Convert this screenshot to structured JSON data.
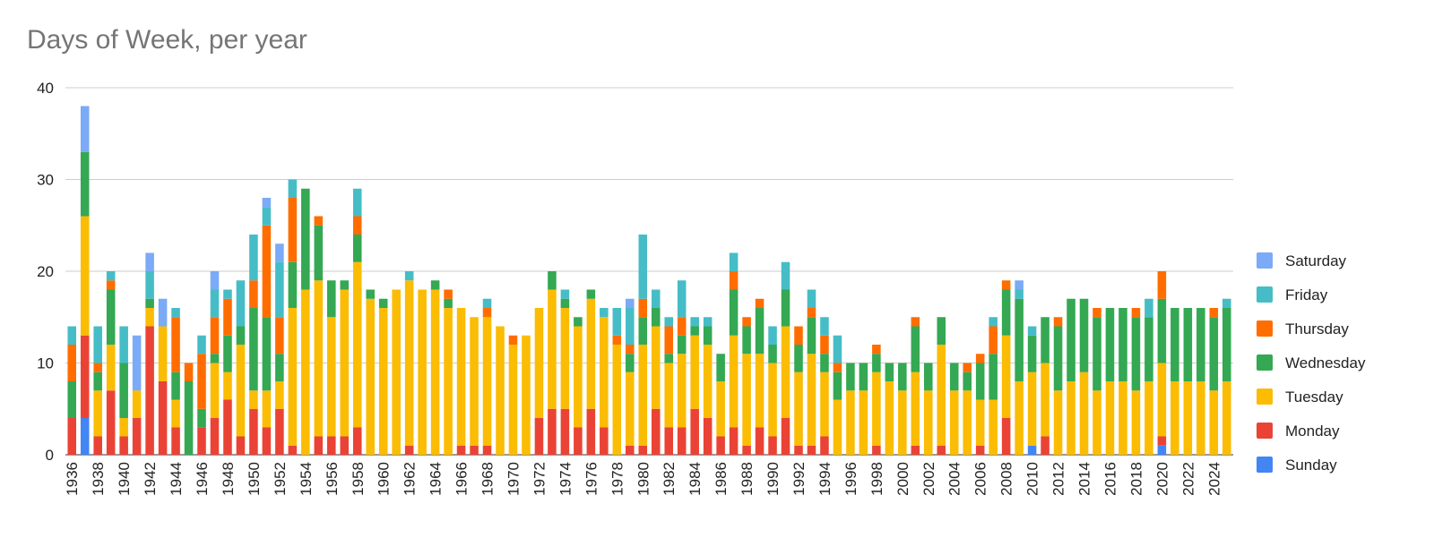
{
  "chart_data": {
    "type": "bar",
    "stacked": true,
    "title": "Days of Week, per year",
    "xlabel": "",
    "ylabel": "",
    "ylim": [
      0,
      40
    ],
    "yticks": [
      0,
      10,
      20,
      30,
      40
    ],
    "grid": true,
    "legend_position": "right",
    "categories": [
      1936,
      1937,
      1938,
      1939,
      1940,
      1941,
      1942,
      1943,
      1944,
      1945,
      1946,
      1947,
      1948,
      1949,
      1950,
      1951,
      1952,
      1953,
      1954,
      1955,
      1956,
      1957,
      1958,
      1959,
      1960,
      1961,
      1962,
      1963,
      1964,
      1965,
      1966,
      1967,
      1968,
      1969,
      1970,
      1971,
      1972,
      1973,
      1974,
      1975,
      1976,
      1977,
      1978,
      1979,
      1980,
      1981,
      1982,
      1983,
      1984,
      1985,
      1986,
      1987,
      1988,
      1989,
      1990,
      1991,
      1992,
      1993,
      1994,
      1995,
      1996,
      1997,
      1998,
      1999,
      2000,
      2001,
      2002,
      2003,
      2004,
      2005,
      2006,
      2007,
      2008,
      2009,
      2010,
      2011,
      2012,
      2013,
      2014,
      2015,
      2016,
      2017,
      2018,
      2019,
      2020,
      2021,
      2022,
      2023,
      2024,
      2025
    ],
    "x_tick_labels": [
      "1936",
      "1938",
      "1940",
      "1942",
      "1944",
      "1946",
      "1948",
      "1950",
      "1952",
      "1954",
      "1956",
      "1958",
      "1960",
      "1962",
      "1964",
      "1966",
      "1968",
      "1970",
      "1972",
      "1974",
      "1976",
      "1978",
      "1980",
      "1982",
      "1984",
      "1986",
      "1988",
      "1990",
      "1992",
      "1994",
      "1996",
      "1998",
      "2000",
      "2002",
      "2004",
      "2006",
      "2008",
      "2010",
      "2012",
      "2014",
      "2016",
      "2018",
      "2020",
      "2022",
      "2024"
    ],
    "series": [
      {
        "name": "Sunday",
        "color": "#4285F4",
        "values": [
          0,
          4,
          0,
          0,
          0,
          0,
          0,
          0,
          0,
          0,
          0,
          0,
          0,
          0,
          0,
          0,
          0,
          0,
          0,
          0,
          0,
          0,
          0,
          0,
          0,
          0,
          0,
          0,
          0,
          0,
          0,
          0,
          0,
          0,
          0,
          0,
          0,
          0,
          0,
          0,
          0,
          0,
          0,
          0,
          0,
          0,
          0,
          0,
          0,
          0,
          0,
          0,
          0,
          0,
          0,
          0,
          0,
          0,
          0,
          0,
          0,
          0,
          0,
          0,
          0,
          0,
          0,
          0,
          0,
          0,
          0,
          0,
          0,
          0,
          1,
          0,
          0,
          0,
          0,
          0,
          0,
          0,
          0,
          0,
          1,
          0,
          0,
          0,
          0,
          0
        ]
      },
      {
        "name": "Monday",
        "color": "#EA4335",
        "values": [
          4,
          9,
          2,
          7,
          2,
          4,
          14,
          8,
          3,
          0,
          3,
          4,
          6,
          2,
          5,
          3,
          5,
          1,
          0,
          2,
          2,
          2,
          3,
          0,
          0,
          0,
          1,
          0,
          0,
          0,
          1,
          1,
          1,
          0,
          0,
          0,
          4,
          5,
          5,
          3,
          5,
          3,
          0,
          1,
          1,
          5,
          3,
          3,
          5,
          4,
          2,
          3,
          1,
          3,
          2,
          4,
          1,
          1,
          2,
          0,
          0,
          0,
          1,
          0,
          0,
          1,
          0,
          1,
          0,
          0,
          1,
          0,
          4,
          0,
          0,
          2,
          0,
          0,
          0,
          0,
          0,
          0,
          0,
          0,
          1,
          0,
          0,
          0,
          0,
          0
        ]
      },
      {
        "name": "Tuesday",
        "color": "#FBBC04",
        "values": [
          0,
          13,
          5,
          5,
          2,
          3,
          2,
          6,
          3,
          0,
          0,
          6,
          3,
          10,
          2,
          4,
          3,
          15,
          18,
          17,
          13,
          16,
          18,
          17,
          16,
          18,
          18,
          18,
          18,
          16,
          15,
          14,
          14,
          14,
          12,
          13,
          12,
          13,
          11,
          11,
          12,
          12,
          12,
          8,
          11,
          9,
          7,
          8,
          8,
          8,
          6,
          10,
          10,
          8,
          8,
          10,
          8,
          10,
          7,
          6,
          7,
          7,
          8,
          8,
          7,
          8,
          7,
          11,
          7,
          7,
          5,
          6,
          9,
          8,
          8,
          8,
          7,
          8,
          9,
          7,
          8,
          8,
          7,
          8,
          8,
          8,
          8,
          8,
          7,
          8
        ]
      },
      {
        "name": "Wednesday",
        "color": "#34A853",
        "values": [
          4,
          7,
          2,
          6,
          6,
          0,
          1,
          0,
          3,
          8,
          2,
          1,
          4,
          2,
          9,
          8,
          3,
          5,
          11,
          6,
          4,
          1,
          3,
          1,
          1,
          0,
          0,
          0,
          1,
          1,
          0,
          0,
          0,
          0,
          0,
          0,
          0,
          2,
          1,
          1,
          1,
          0,
          0,
          2,
          3,
          2,
          1,
          2,
          1,
          2,
          3,
          5,
          3,
          5,
          2,
          4,
          3,
          4,
          2,
          3,
          3,
          3,
          2,
          2,
          3,
          5,
          3,
          3,
          3,
          2,
          4,
          5,
          5,
          9,
          4,
          5,
          7,
          9,
          8,
          8,
          8,
          8,
          8,
          7,
          7,
          8,
          8,
          8,
          8,
          8
        ]
      },
      {
        "name": "Thursday",
        "color": "#FF6D01",
        "values": [
          4,
          0,
          1,
          1,
          0,
          0,
          0,
          0,
          6,
          2,
          6,
          4,
          4,
          0,
          3,
          10,
          4,
          7,
          0,
          1,
          0,
          0,
          2,
          0,
          0,
          0,
          0,
          0,
          0,
          1,
          0,
          0,
          1,
          0,
          1,
          0,
          0,
          0,
          0,
          0,
          0,
          0,
          1,
          1,
          2,
          0,
          3,
          2,
          0,
          0,
          0,
          2,
          1,
          1,
          0,
          0,
          2,
          1,
          2,
          1,
          0,
          0,
          1,
          0,
          0,
          1,
          0,
          0,
          0,
          1,
          1,
          3,
          1,
          0,
          0,
          0,
          1,
          0,
          0,
          1,
          0,
          0,
          1,
          0,
          3,
          0,
          0,
          0,
          1,
          0
        ]
      },
      {
        "name": "Friday",
        "color": "#46BDC6",
        "values": [
          2,
          0,
          4,
          1,
          4,
          0,
          3,
          0,
          1,
          0,
          2,
          3,
          1,
          5,
          5,
          2,
          6,
          2,
          0,
          0,
          0,
          0,
          3,
          0,
          0,
          0,
          1,
          0,
          0,
          0,
          0,
          0,
          1,
          0,
          0,
          0,
          0,
          0,
          1,
          0,
          0,
          1,
          3,
          4,
          7,
          2,
          1,
          4,
          1,
          1,
          0,
          2,
          0,
          0,
          2,
          3,
          0,
          2,
          2,
          3,
          0,
          0,
          0,
          0,
          0,
          0,
          0,
          0,
          0,
          0,
          0,
          1,
          0,
          1,
          1,
          0,
          0,
          0,
          0,
          0,
          0,
          0,
          0,
          2,
          0,
          0,
          0,
          0,
          0,
          1
        ]
      },
      {
        "name": "Saturday",
        "color": "#7BAAF7",
        "values": [
          0,
          5,
          0,
          0,
          0,
          6,
          2,
          3,
          0,
          0,
          0,
          2,
          0,
          0,
          0,
          1,
          2,
          0,
          0,
          0,
          0,
          0,
          0,
          0,
          0,
          0,
          0,
          0,
          0,
          0,
          0,
          0,
          0,
          0,
          0,
          0,
          0,
          0,
          0,
          0,
          0,
          0,
          0,
          1,
          0,
          0,
          0,
          0,
          0,
          0,
          0,
          0,
          0,
          0,
          0,
          0,
          0,
          0,
          0,
          0,
          0,
          0,
          0,
          0,
          0,
          0,
          0,
          0,
          0,
          0,
          0,
          0,
          0,
          1,
          0,
          0,
          0,
          0,
          0,
          0,
          0,
          0,
          0,
          0,
          0,
          0,
          0,
          0,
          0,
          0
        ]
      }
    ]
  }
}
